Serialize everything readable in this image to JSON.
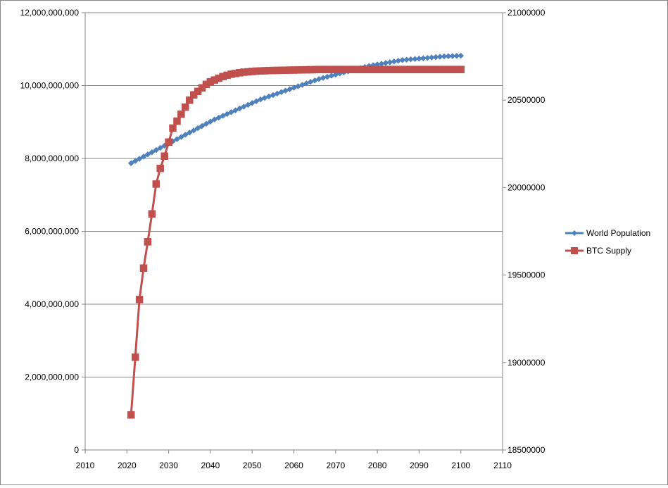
{
  "chart_data": {
    "type": "line",
    "title": "",
    "xlabel": "",
    "ylabel": "",
    "y2label": "",
    "xlim": [
      2010,
      2110
    ],
    "x_ticks": [
      2010,
      2020,
      2030,
      2040,
      2050,
      2060,
      2070,
      2080,
      2090,
      2100,
      2110
    ],
    "ylim": [
      0,
      12000000000
    ],
    "y_ticks": [
      0,
      2000000000,
      4000000000,
      6000000000,
      8000000000,
      10000000000,
      12000000000
    ],
    "y_tick_labels": [
      "0",
      "2,000,000,000",
      "4,000,000,000",
      "6,000,000,000",
      "8,000,000,000",
      "10,000,000,000",
      "12,000,000,000"
    ],
    "y2lim": [
      18500000,
      21000000
    ],
    "y2_ticks": [
      18500000,
      19000000,
      19500000,
      20000000,
      20500000,
      21000000
    ],
    "y2_tick_labels": [
      "18500000",
      "19000000",
      "19500000",
      "20000000",
      "20500000",
      "21000000"
    ],
    "grid": "horizontal major lines",
    "legend_position": "right",
    "series": [
      {
        "name": "World Population",
        "axis": "left",
        "color": "#4F81BD",
        "marker": "diamond",
        "x_start": 2021,
        "x_step": 1,
        "values": [
          7870000000,
          7930000000,
          7990000000,
          8050000000,
          8110000000,
          8170000000,
          8230000000,
          8290000000,
          8350000000,
          8410000000,
          8470000000,
          8530000000,
          8590000000,
          8650000000,
          8710000000,
          8770000000,
          8830000000,
          8890000000,
          8950000000,
          9010000000,
          9070000000,
          9120000000,
          9170000000,
          9220000000,
          9270000000,
          9320000000,
          9370000000,
          9420000000,
          9470000000,
          9520000000,
          9570000000,
          9620000000,
          9660000000,
          9700000000,
          9740000000,
          9780000000,
          9820000000,
          9860000000,
          9900000000,
          9940000000,
          9980000000,
          10020000000,
          10060000000,
          10100000000,
          10140000000,
          10180000000,
          10210000000,
          10240000000,
          10270000000,
          10300000000,
          10330000000,
          10360000000,
          10390000000,
          10420000000,
          10450000000,
          10480000000,
          10510000000,
          10540000000,
          10560000000,
          10580000000,
          10600000000,
          10620000000,
          10640000000,
          10660000000,
          10680000000,
          10700000000,
          10710000000,
          10720000000,
          10730000000,
          10740000000,
          10750000000,
          10760000000,
          10770000000,
          10780000000,
          10790000000,
          10800000000,
          10805000000,
          10810000000,
          10815000000,
          10820000000
        ]
      },
      {
        "name": "BTC Supply",
        "axis": "right",
        "color": "#C0504D",
        "marker": "square",
        "x_start": 2021,
        "x_step": 1,
        "values": [
          18700000,
          19030000,
          19360000,
          19540000,
          19690000,
          19850000,
          20020000,
          20110000,
          20180000,
          20260000,
          20340000,
          20380000,
          20420000,
          20460000,
          20500000,
          20530000,
          20550000,
          20570000,
          20590000,
          20605000,
          20615000,
          20625000,
          20635000,
          20642000,
          20648000,
          20652000,
          20656000,
          20660000,
          20662000,
          20664000,
          20666000,
          20667000,
          20668000,
          20669000,
          20669500,
          20670000,
          20670500,
          20671000,
          20671500,
          20672000,
          20672500,
          20673000,
          20673500,
          20674000,
          20674500,
          20675000,
          20675000,
          20675000,
          20675000,
          20675000,
          20675000,
          20675000,
          20675000,
          20675000,
          20675000,
          20675000,
          20675000,
          20675000,
          20675000,
          20675000,
          20675000,
          20675000,
          20675000,
          20675000,
          20675000,
          20675000,
          20675000,
          20675000,
          20675000,
          20675000,
          20675000,
          20675000,
          20675000,
          20675000,
          20675000,
          20675000,
          20675000,
          20675000,
          20675000,
          20675000
        ]
      }
    ]
  }
}
